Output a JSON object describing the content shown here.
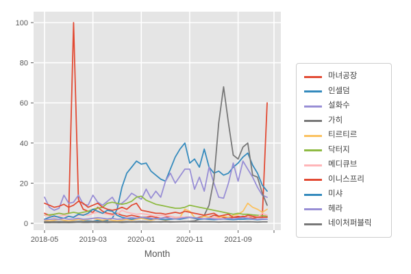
{
  "figure": {
    "background": "#ffffff",
    "plot_background": "#e5e5e5",
    "grid_color": "#ffffff",
    "tick_text_color": "#555555",
    "legend_border_color": "#cccccc",
    "legend_background": "#ffffff"
  },
  "chart_data": {
    "type": "line",
    "title": "",
    "xlabel": "Month",
    "ylabel": "",
    "grid": true,
    "legend_position": "right",
    "ylim": [
      -5,
      105
    ],
    "y_ticks": [
      0,
      20,
      40,
      60,
      80,
      100
    ],
    "x_tick_labels": [
      "2018-05",
      "2019-03",
      "2020-01",
      "2020-11",
      "2021-09"
    ],
    "x_tick_indices": [
      0,
      10,
      20,
      30,
      40
    ],
    "x_months": [
      "2018-05",
      "2018-06",
      "2018-07",
      "2018-08",
      "2018-09",
      "2018-10",
      "2018-11",
      "2018-12",
      "2019-01",
      "2019-02",
      "2019-03",
      "2019-04",
      "2019-05",
      "2019-06",
      "2019-07",
      "2019-08",
      "2019-09",
      "2019-10",
      "2019-11",
      "2019-12",
      "2020-01",
      "2020-02",
      "2020-03",
      "2020-04",
      "2020-05",
      "2020-06",
      "2020-07",
      "2020-08",
      "2020-09",
      "2020-10",
      "2020-11",
      "2020-12",
      "2021-01",
      "2021-02",
      "2021-03",
      "2021-04",
      "2021-05",
      "2021-06",
      "2021-07",
      "2021-08",
      "2021-09",
      "2021-10",
      "2021-11",
      "2021-12",
      "2022-01",
      "2022-02",
      "2022-03"
    ],
    "series": [
      {
        "name": "마녀공장",
        "color": "#E24A33",
        "values": [
          5,
          4,
          4.5,
          5,
          4.5,
          5,
          100,
          12,
          7,
          6,
          5.5,
          8,
          6,
          5,
          4.5,
          5,
          4,
          3.5,
          4,
          3.5,
          3,
          3,
          3.5,
          3,
          2.5,
          3,
          3.5,
          3,
          2.5,
          3,
          3,
          2.5,
          3,
          3.5,
          3,
          4,
          3.5,
          3,
          2.5,
          3,
          3,
          3.5,
          3,
          2.5,
          3,
          3,
          60
        ]
      },
      {
        "name": "인셀덤",
        "color": "#348ABD",
        "values": [
          0.7,
          0.7,
          0.8,
          0.7,
          0.8,
          1,
          0.8,
          1,
          1,
          1.2,
          1,
          1.5,
          1.2,
          1.5,
          2.5,
          7,
          18,
          25,
          28,
          31,
          29.5,
          30,
          26,
          24,
          22,
          21,
          27,
          33,
          37,
          40,
          30,
          32,
          28,
          37,
          28,
          25,
          26,
          24,
          25,
          28,
          30,
          33,
          35,
          29,
          25,
          19,
          16
        ]
      },
      {
        "name": "설화수",
        "color": "#988ED5",
        "values": [
          13,
          8,
          6.5,
          7.5,
          14,
          10,
          10.5,
          14,
          9.5,
          9,
          14,
          10.5,
          9,
          11,
          13,
          9,
          10,
          12,
          15,
          13.5,
          12,
          17,
          12.5,
          16,
          13,
          21,
          25,
          20,
          23.5,
          27,
          27,
          17,
          23,
          16,
          28,
          20,
          13,
          12.5,
          20,
          30,
          21,
          31,
          27,
          23,
          18,
          14,
          13
        ]
      },
      {
        "name": "가히",
        "color": "#777777",
        "values": [
          0.3,
          0.3,
          0.4,
          0.3,
          0.4,
          0.3,
          0.4,
          0.5,
          0.4,
          0.4,
          0.5,
          0.4,
          0.5,
          0.4,
          0.5,
          0.5,
          0.4,
          0.5,
          0.6,
          0.5,
          0.6,
          0.5,
          0.6,
          0.7,
          0.6,
          0.7,
          0.6,
          0.7,
          0.8,
          0.8,
          1,
          1.2,
          2,
          4,
          9,
          22,
          50,
          68,
          50,
          34,
          32,
          38,
          40,
          24,
          23,
          15,
          9
        ]
      },
      {
        "name": "티르티르",
        "color": "#FBC15E",
        "values": [
          1.5,
          1.2,
          1.5,
          2,
          1.5,
          1.2,
          1.5,
          2,
          1.5,
          2,
          2.5,
          2,
          1.5,
          2,
          1.5,
          1.2,
          1.5,
          2,
          1.5,
          2,
          2.5,
          2,
          1.5,
          2,
          2,
          1.5,
          2,
          2.5,
          3,
          7,
          6,
          3,
          2.5,
          3.5,
          3,
          2.5,
          3,
          3.5,
          3,
          4,
          4.5,
          6,
          10,
          8,
          7,
          5.5,
          7
        ]
      },
      {
        "name": "닥터지",
        "color": "#8EBA42",
        "values": [
          4,
          4.2,
          4.5,
          5,
          4.5,
          5,
          5.5,
          5,
          5.5,
          6,
          7,
          7.5,
          8,
          10,
          10.5,
          10,
          9.5,
          10,
          11,
          13,
          13.5,
          11.5,
          10.5,
          9.5,
          9,
          8.5,
          8,
          7.5,
          7.5,
          8,
          9,
          8.5,
          8,
          7.5,
          7,
          6.5,
          6,
          5.5,
          5,
          4.5,
          5,
          4.5,
          4.5,
          4.2,
          4,
          3.8,
          3.5
        ]
      },
      {
        "name": "메디큐브",
        "color": "#FFB5B8",
        "values": [
          4,
          3.5,
          3,
          3.5,
          4,
          3.5,
          3,
          4,
          4.5,
          4,
          5,
          5.5,
          5,
          4.5,
          4,
          4.5,
          6.5,
          5.5,
          5,
          4.5,
          4.8,
          4.5,
          4,
          3.5,
          4,
          3.8,
          3.5,
          3,
          3.2,
          3,
          2.8,
          2.5,
          2.5,
          2.2,
          2.5,
          2.8,
          2.5,
          2.2,
          2,
          2.2,
          2.5,
          2.8,
          3,
          3.5,
          3,
          5,
          4
        ]
      },
      {
        "name": "이니스프리",
        "color": "#E24A33",
        "values": [
          10,
          9,
          8,
          8.5,
          9.5,
          8,
          9,
          11,
          10,
          8,
          9,
          10,
          8,
          7,
          6.5,
          7,
          8,
          7,
          9,
          10,
          6.5,
          6,
          5.5,
          5,
          5,
          4.5,
          5,
          5.5,
          5,
          6,
          5.5,
          5,
          4.5,
          4,
          4.5,
          5,
          3.5,
          4,
          4.5,
          3,
          3.5,
          3,
          4,
          3.5,
          3,
          3,
          3
        ]
      },
      {
        "name": "미샤",
        "color": "#348ABD",
        "values": [
          2,
          3,
          3.7,
          3,
          2.5,
          3.5,
          3,
          4.5,
          4,
          5,
          7,
          6,
          5,
          6.5,
          6,
          4,
          3,
          2.5,
          2,
          2.5,
          3,
          2.5,
          2,
          2.5,
          2,
          1.8,
          2,
          2.2,
          2,
          2.5,
          3,
          2.5,
          2,
          2.2,
          2,
          1.8,
          2,
          2.2,
          2,
          1.8,
          2,
          2,
          2.2,
          2,
          1.8,
          2,
          2
        ]
      },
      {
        "name": "헤라",
        "color": "#988ED5",
        "values": [
          1.8,
          2,
          2.2,
          2,
          2.5,
          2,
          2.2,
          2.5,
          2,
          2.2,
          2.5,
          2.8,
          2.5,
          2.2,
          2.5,
          2,
          2.2,
          2.5,
          2.8,
          2.5,
          3,
          2.8,
          2.5,
          2.2,
          2.5,
          2.8,
          2.5,
          2.2,
          2.5,
          2.8,
          3,
          2.8,
          2.5,
          2.2,
          2.5,
          2.2,
          2,
          2.2,
          2.5,
          2.2,
          2.5,
          2.8,
          2.5,
          2.2,
          2,
          2.2,
          2
        ]
      },
      {
        "name": "네이처퍼블릭",
        "color": "#777777",
        "values": [
          0.8,
          0.7,
          0.8,
          0.9,
          0.8,
          0.7,
          0.8,
          0.9,
          0.8,
          0.9,
          1,
          0.9,
          0.8,
          0.9,
          0.8,
          0.7,
          0.8,
          0.9,
          0.8,
          0.9,
          1,
          0.9,
          0.8,
          0.7,
          0.8,
          0.9,
          0.8,
          0.7,
          0.8,
          0.9,
          0.8,
          0.7,
          0.8,
          0.7,
          0.8,
          0.7,
          0.6,
          0.7,
          0.8,
          0.7,
          0.8,
          0.7,
          0.8,
          0.7,
          0.6,
          0.7,
          0.7
        ]
      }
    ]
  }
}
